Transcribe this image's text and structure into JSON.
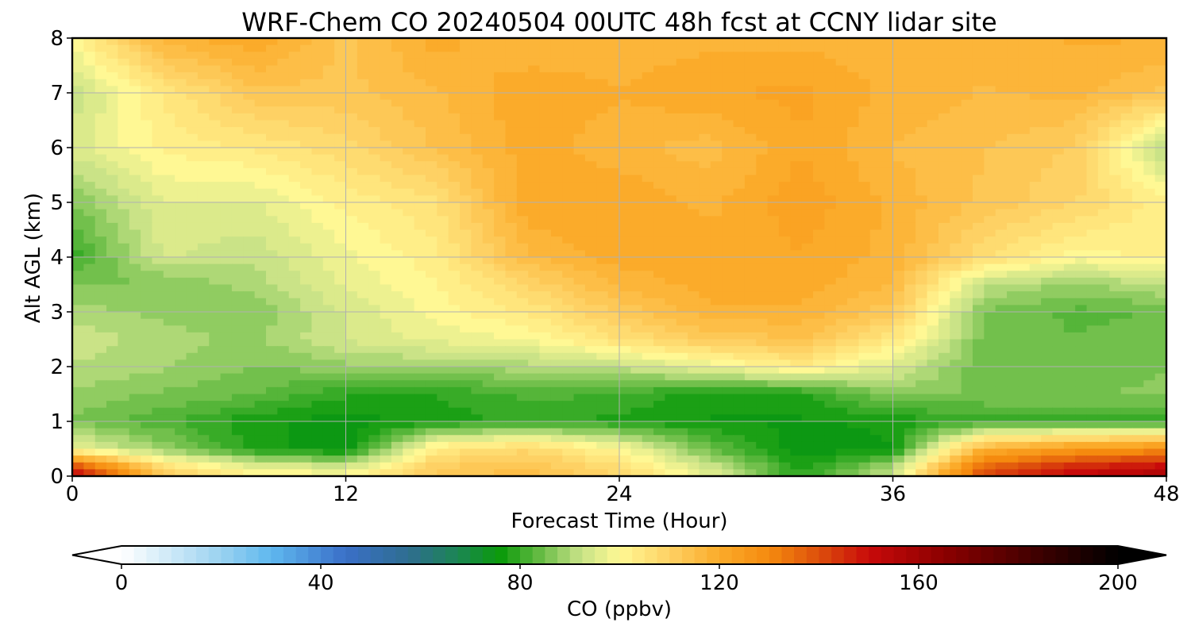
{
  "chart_data": {
    "type": "heatmap",
    "title": "WRF-Chem CO  20240504 00UTC 48h fcst at CCNY lidar site",
    "xlabel": "Forecast Time (Hour)",
    "ylabel": "Alt AGL (km)",
    "xlim": [
      0,
      48
    ],
    "ylim": [
      0,
      8
    ],
    "x_ticks": [
      0,
      12,
      24,
      36,
      48
    ],
    "y_ticks": [
      0,
      1,
      2,
      3,
      4,
      5,
      6,
      7,
      8
    ],
    "grid": true,
    "x": [
      0,
      4,
      8,
      12,
      16,
      20,
      24,
      28,
      32,
      36,
      40,
      44,
      48
    ],
    "y": [
      0.1,
      0.5,
      1,
      1.5,
      2,
      2.5,
      3,
      3.5,
      4,
      5,
      6,
      7,
      8
    ],
    "z": [
      [
        150,
        110,
        100,
        98,
        112,
        115,
        108,
        95,
        78,
        92,
        140,
        150,
        155
      ],
      [
        97,
        88,
        78,
        74,
        104,
        108,
        100,
        84,
        74,
        76,
        118,
        125,
        128
      ],
      [
        86,
        82,
        77,
        75,
        77,
        80,
        78,
        76,
        76,
        77,
        80,
        80,
        80
      ],
      [
        88,
        86,
        84,
        79,
        79,
        82,
        81,
        77,
        78,
        87,
        86,
        86,
        87
      ],
      [
        91,
        89,
        86,
        88,
        89,
        90,
        92,
        97,
        103,
        95,
        84,
        84,
        86
      ],
      [
        93,
        90,
        88,
        94,
        97,
        99,
        106,
        112,
        114,
        104,
        85,
        84,
        85
      ],
      [
        90,
        88,
        87,
        94,
        100,
        104,
        112,
        118,
        118,
        112,
        86,
        83,
        84
      ],
      [
        86,
        86,
        90,
        97,
        101,
        109,
        117,
        120,
        120,
        116,
        92,
        88,
        92
      ],
      [
        80,
        94,
        92,
        98,
        103,
        116,
        120,
        120,
        121,
        118,
        107,
        100,
        102
      ],
      [
        86,
        96,
        96,
        102,
        106,
        121,
        121,
        118,
        123,
        118,
        113,
        109,
        102
      ],
      [
        95,
        102,
        104,
        108,
        114,
        120,
        117,
        115,
        121,
        116,
        114,
        111,
        90
      ],
      [
        92,
        104,
        113,
        113,
        116,
        121,
        119,
        121,
        122,
        118,
        116,
        117,
        113
      ],
      [
        100,
        118,
        121,
        113,
        120,
        116,
        117,
        118,
        118,
        117,
        117,
        119,
        119
      ]
    ],
    "colorbar": {
      "label": "CO  (ppbv)",
      "min": 0,
      "max": 200,
      "ticks": [
        0,
        40,
        80,
        120,
        160,
        200
      ],
      "extend": "both",
      "colors": {
        "0": "#ffffff",
        "20": "#9ad2f0",
        "30": "#5fb8ef",
        "45": "#3a6fc8",
        "58": "#2e6e8e",
        "68": "#1a8750",
        "76": "#0a9a0a",
        "84": "#66bb44",
        "92": "#c6e286",
        "100": "#fff894",
        "110": "#fed164",
        "120": "#fbab2a",
        "130": "#f58a0e",
        "140": "#dd4e0c",
        "150": "#c80a0a",
        "165": "#8c0000",
        "185": "#3a0000",
        "200": "#000000"
      }
    }
  }
}
